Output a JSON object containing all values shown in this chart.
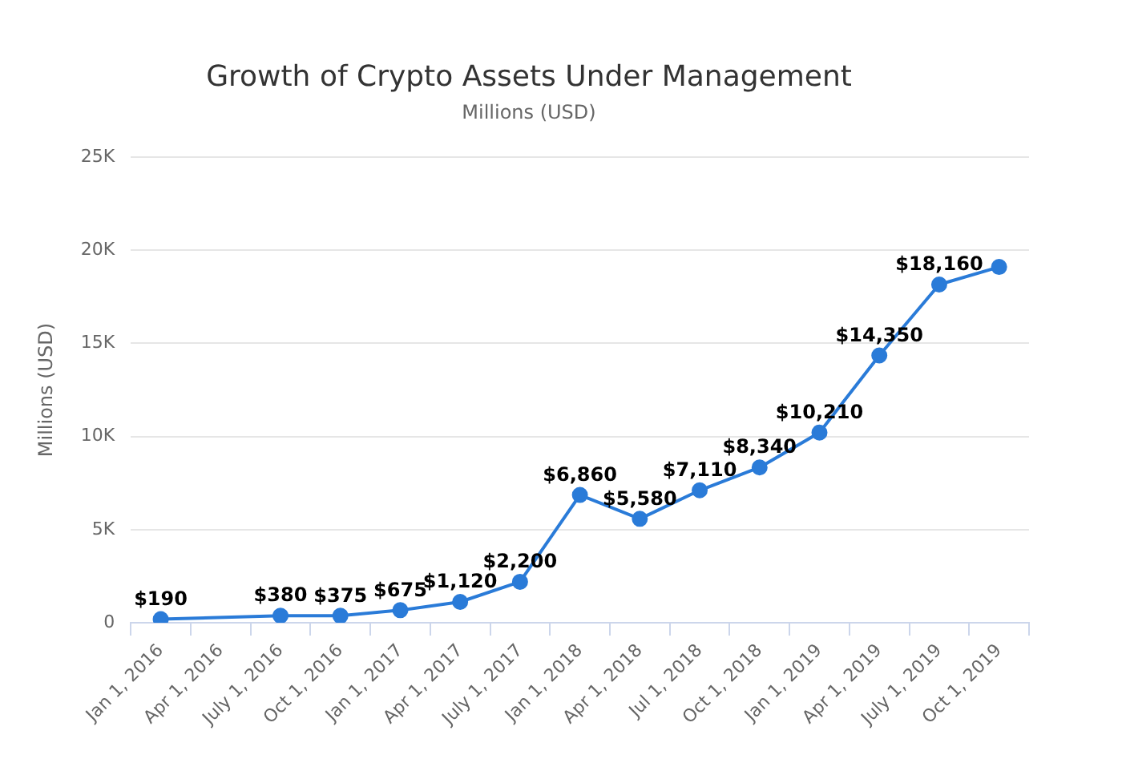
{
  "chart_data": {
    "type": "line",
    "title": "Growth of Crypto Assets Under Management",
    "subtitle": "Millions (USD)",
    "ylabel": "Millions (USD)",
    "categories": [
      "Jan 1, 2016",
      "Apr 1, 2016",
      "July 1, 2016",
      "Oct 1, 2016",
      "Jan 1, 2017",
      "Apr 1, 2017",
      "July 1, 2017",
      "Jan 1, 2018",
      "Apr 1, 2018",
      "Jul 1, 2018",
      "Oct 1, 2018",
      "Jan 1, 2019",
      "Apr 1, 2019",
      "July 1, 2019",
      "Oct 1, 2019"
    ],
    "series": [
      {
        "color": "#2a7bd8",
        "values": [
          190,
          null,
          380,
          375,
          675,
          1120,
          2200,
          6860,
          5580,
          7110,
          8340,
          10210,
          14350,
          18160,
          19100
        ],
        "value_labels": [
          "$190",
          null,
          "$380",
          "$375",
          "$675",
          "$1,120",
          "$2,200",
          "$6,860",
          "$5,580",
          "$7,110",
          "$8,340",
          "$10,210",
          "$14,350",
          "$18,160",
          null
        ]
      }
    ],
    "ylim": [
      0,
      25000
    ],
    "yticks": [
      0,
      {
        "value": 5000,
        "label": "5K"
      },
      {
        "value": 10000,
        "label": "10K"
      },
      {
        "value": 15000,
        "label": "15K"
      },
      {
        "value": 20000,
        "label": "20K"
      },
      {
        "value": 25000,
        "label": "25K"
      }
    ],
    "grid": "y",
    "legend": false,
    "marker": "circle",
    "line_style": "solid"
  }
}
